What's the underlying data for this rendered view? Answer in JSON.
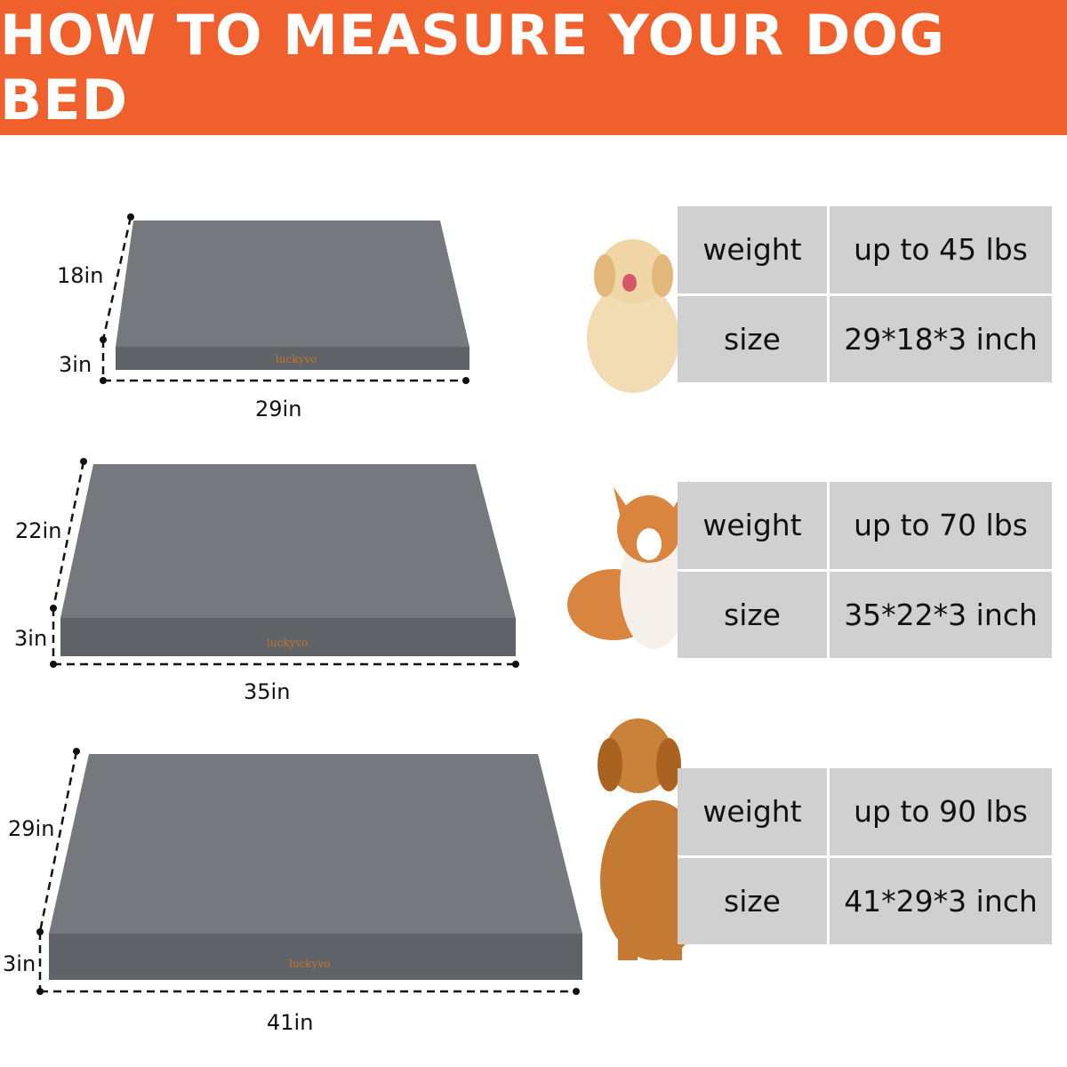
{
  "title": "HOW TO MEASURE YOUR DOG BED",
  "colors": {
    "header": "#F0602C",
    "bed": "#6e7377",
    "table_cell": "#d0d0d0"
  },
  "brand": "luckyvo",
  "beds": [
    {
      "width": "29in",
      "depth": "18in",
      "height": "3in",
      "dog": "golden-retriever-puppy",
      "weight_label": "weight",
      "weight": "up to 45 lbs",
      "size_label": "size",
      "size": "29*18*3 inch"
    },
    {
      "width": "35in",
      "depth": "22in",
      "height": "3in",
      "dog": "corgi",
      "weight_label": "weight",
      "weight": "up to 70 lbs",
      "size_label": "size",
      "size": "35*22*3 inch"
    },
    {
      "width": "41in",
      "depth": "29in",
      "height": "3in",
      "dog": "golden-retriever",
      "weight_label": "weight",
      "weight": "up to 90 lbs",
      "size_label": "size",
      "size": "41*29*3 inch"
    }
  ]
}
